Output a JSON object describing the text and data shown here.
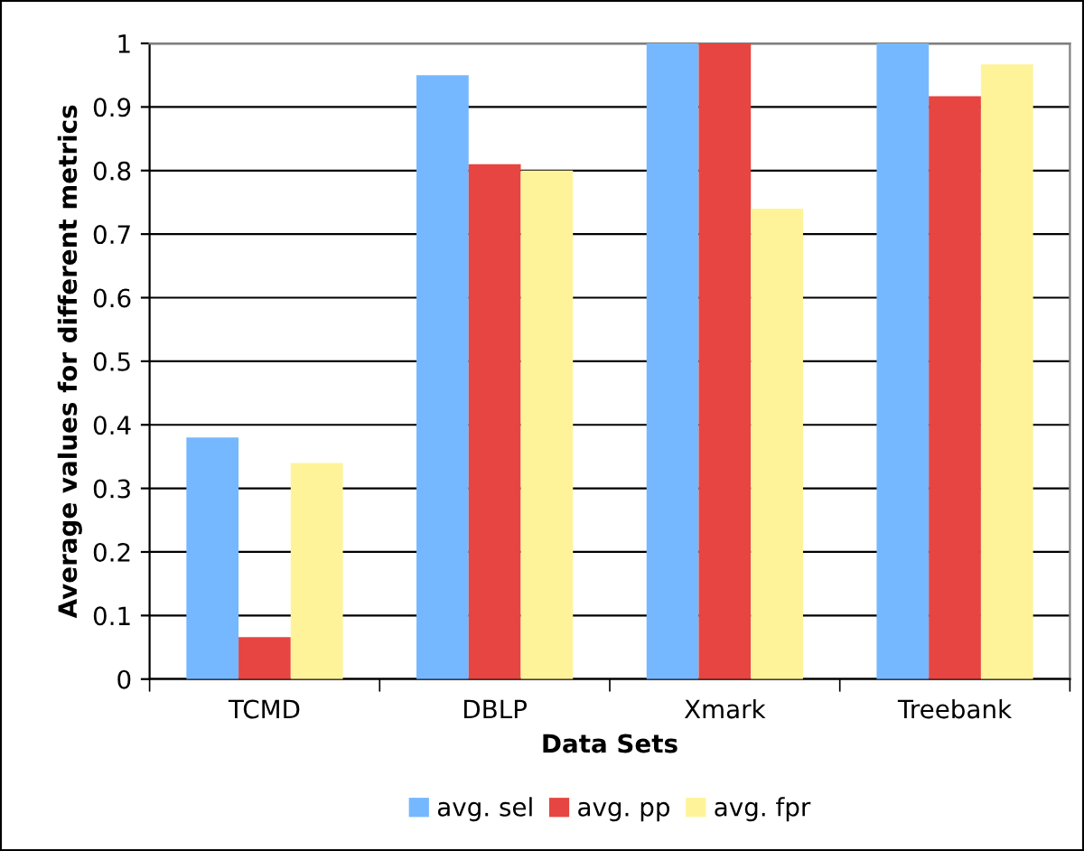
{
  "chart_data": {
    "type": "bar",
    "xlabel": "Data Sets",
    "ylabel": "Average values for different metrics",
    "categories": [
      "TCMD",
      "DBLP",
      "Xmark",
      "Treebank"
    ],
    "series": [
      {
        "name": "avg. sel",
        "color": "#75b8ff",
        "values": [
          0.38,
          0.95,
          1.0,
          1.0
        ]
      },
      {
        "name": "avg. pp",
        "color": "#e64541",
        "values": [
          0.066,
          0.81,
          1.0,
          0.917
        ]
      },
      {
        "name": "avg. fpr",
        "color": "#fff399",
        "values": [
          0.34,
          0.8,
          0.74,
          0.967
        ]
      }
    ],
    "ylim": [
      0,
      1
    ],
    "yticks": [
      0,
      0.1,
      0.2,
      0.3,
      0.4,
      0.5,
      0.6,
      0.7,
      0.8,
      0.9,
      1
    ],
    "grid": "y",
    "legend": "bottom"
  }
}
